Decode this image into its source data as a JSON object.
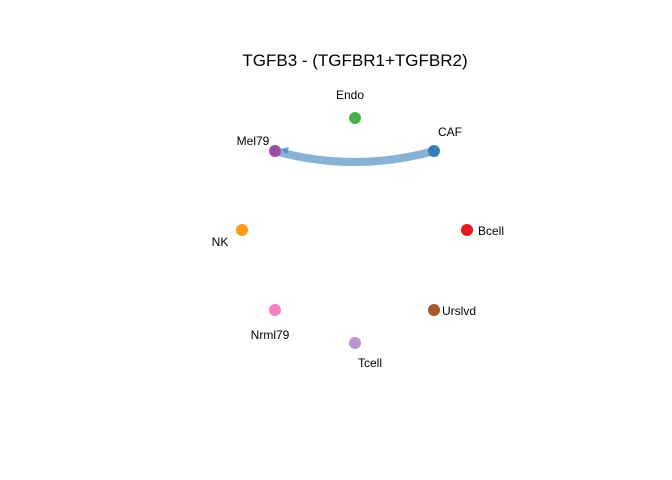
{
  "title": "TGFB3 - (TGFBR1+TGFBR2)",
  "nodes": [
    {
      "id": "CAF",
      "label": "CAF",
      "color": "#377EB8"
    },
    {
      "id": "Endo",
      "label": "Endo",
      "color": "#4DAF4A"
    },
    {
      "id": "Mel79",
      "label": "Mel79",
      "color": "#984EA3"
    },
    {
      "id": "NK",
      "label": "NK",
      "color": "#FF9A1A"
    },
    {
      "id": "Nrml79",
      "label": "Nrml79",
      "color": "#F781BF"
    },
    {
      "id": "Tcell",
      "label": "Tcell",
      "color": "#BC95CF"
    },
    {
      "id": "Urslvd",
      "label": "Urslvd",
      "color": "#A65628"
    },
    {
      "id": "Bcell",
      "label": "Bcell",
      "color": "#E41A1C"
    }
  ],
  "edges": [
    {
      "source": "CAF",
      "target": "Mel79",
      "color": "#377EB8"
    }
  ]
}
